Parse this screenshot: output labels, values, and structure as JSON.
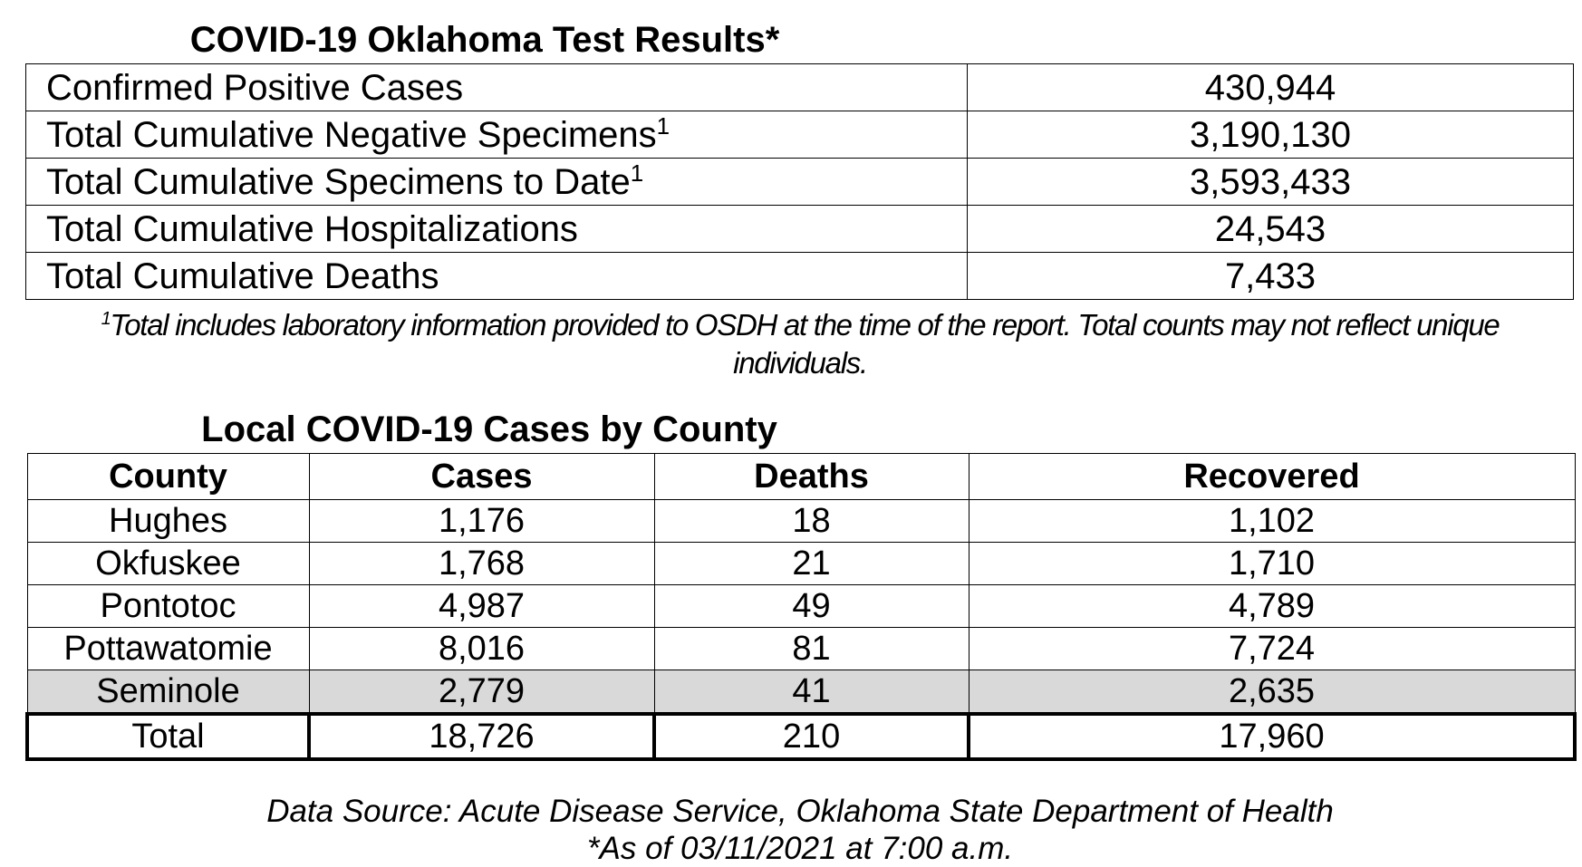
{
  "test_results": {
    "title": "COVID-19 Oklahoma Test Results*",
    "rows": [
      {
        "label": "Confirmed Positive Cases",
        "value": "430,944"
      },
      {
        "label": "Total Cumulative Negative Specimens",
        "sup": "1",
        "value": "3,190,130"
      },
      {
        "label": "Total Cumulative Specimens to Date",
        "sup": "1",
        "value": "3,593,433"
      },
      {
        "label": "Total Cumulative Hospitalizations",
        "value": "24,543"
      },
      {
        "label": "Total Cumulative Deaths",
        "value": "7,433"
      }
    ]
  },
  "footnote": {
    "marker": "1",
    "text": "Total includes laboratory information provided to OSDH at the time of the report. Total counts may not reflect unique individuals."
  },
  "county_table": {
    "title": "Local COVID-19 Cases by County",
    "header": [
      "County",
      "Cases",
      "Deaths",
      "Recovered"
    ],
    "rows": [
      [
        "Hughes",
        "1,176",
        "18",
        "1,102"
      ],
      [
        "Okfuskee",
        "1,768",
        "21",
        "1,710"
      ],
      [
        "Pontotoc",
        "4,987",
        "49",
        "4,789"
      ],
      [
        "Pottawatomie",
        "8,016",
        "81",
        "7,724"
      ],
      [
        "Seminole",
        "2,779",
        "41",
        "2,635"
      ]
    ],
    "total": [
      "Total",
      "18,726",
      "210",
      "17,960"
    ]
  },
  "source": "Data Source: Acute Disease Service, Oklahoma State Department of Health",
  "as_of": "*As of 03/11/2021 at 7:00 a.m."
}
